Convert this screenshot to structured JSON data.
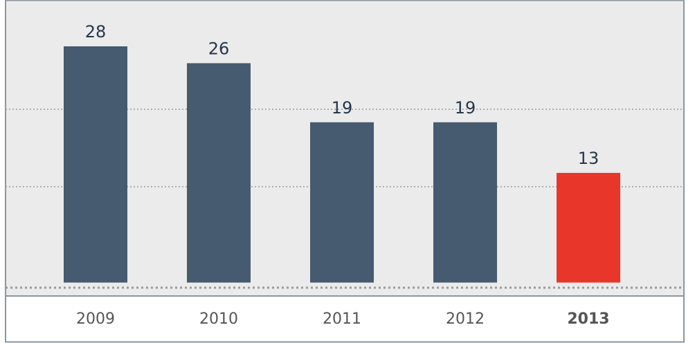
{
  "chart_data": {
    "type": "bar",
    "categories": [
      "2009",
      "2010",
      "2011",
      "2012",
      "2013"
    ],
    "values": [
      28,
      26,
      19,
      19,
      13
    ],
    "colors": [
      "#465a70",
      "#465a70",
      "#465a70",
      "#465a70",
      "#e8372a"
    ],
    "ylim": [
      0,
      33
    ]
  }
}
